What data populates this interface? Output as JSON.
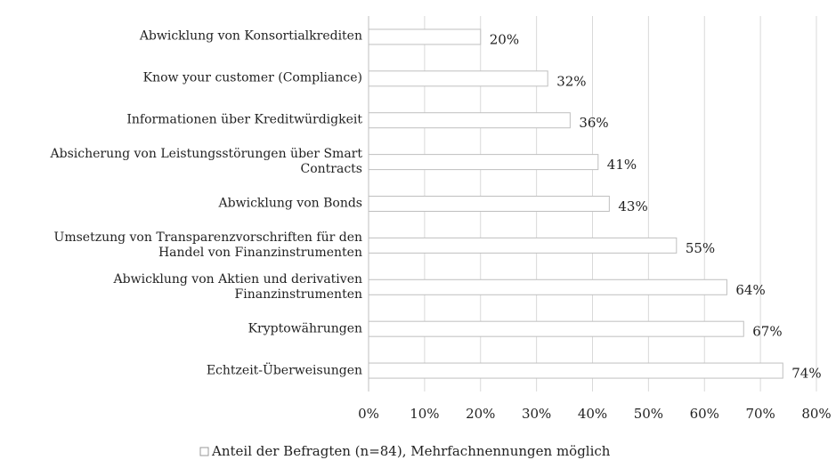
{
  "chart_data": {
    "type": "bar",
    "orientation": "horizontal",
    "categories": [
      "Abwicklung von Konsortialkrediten",
      "Know your customer (Compliance)",
      "Informationen über Kreditwürdigkeit",
      "Absicherung von Leistungsstörungen über Smart Contracts",
      "Abwicklung von Bonds",
      "Umsetzung von Transparenzvorschriften für den Handel von Finanzinstrumenten",
      "Abwicklung von Aktien und derivativen Finanzinstrumenten",
      "Kryptowährungen",
      "Echtzeit-Überweisungen"
    ],
    "series": [
      {
        "name": "Anteil der Befragten (n=84), Mehrfachnennungen möglich",
        "color": "#ffffff",
        "values": [
          20,
          32,
          36,
          41,
          43,
          55,
          64,
          67,
          74
        ],
        "value_labels": [
          "20%",
          "32%",
          "36%",
          "41%",
          "43%",
          "55%",
          "64%",
          "67%",
          "74%"
        ]
      }
    ],
    "xlim": [
      0,
      80
    ],
    "xticks": [
      {
        "value": 0,
        "label": "0%"
      },
      {
        "value": 10,
        "label": "10%"
      },
      {
        "value": 20,
        "label": "20%"
      },
      {
        "value": 30,
        "label": "30%"
      },
      {
        "value": 40,
        "label": "40%"
      },
      {
        "value": 50,
        "label": "50%"
      },
      {
        "value": 60,
        "label": "60%"
      },
      {
        "value": 70,
        "label": "70%"
      },
      {
        "value": 80,
        "label": "80%"
      }
    ],
    "grid": true,
    "legend": "bottom"
  }
}
